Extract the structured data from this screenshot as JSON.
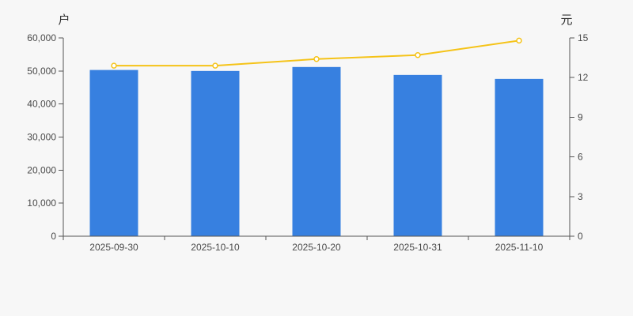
{
  "page": {
    "background": "#f7f7f7"
  },
  "style": {
    "axis_color": "#555555",
    "text_color": "#4a4a4a",
    "label_color": "#333333",
    "bar_color": "#3780e0",
    "line_color": "#f5c318",
    "marker_fill": "#ffffff"
  },
  "chart_data": {
    "type": "bar",
    "title": "",
    "grid": false,
    "legend": false,
    "categories": [
      "2025-09-30",
      "2025-10-10",
      "2025-10-20",
      "2025-10-31",
      "2025-11-10"
    ],
    "series": [
      {
        "name": "户",
        "type": "bar",
        "axis": "left",
        "color": "#3780e0",
        "values": [
          50300,
          50000,
          51200,
          48800,
          47600
        ]
      },
      {
        "name": "元",
        "type": "line",
        "axis": "right",
        "color": "#f5c318",
        "marker": "hollow-circle",
        "values": [
          12.9,
          12.9,
          13.4,
          13.7,
          14.8
        ]
      }
    ],
    "left_axis": {
      "label": "户",
      "min": 0,
      "max": 60000,
      "tick_interval": 10000,
      "tick_labels": [
        "0",
        "10,000",
        "20,000",
        "30,000",
        "40,000",
        "50,000",
        "60,000"
      ]
    },
    "right_axis": {
      "label": "元",
      "min": 0,
      "max": 15,
      "tick_interval": 3,
      "tick_labels": [
        "0",
        "3",
        "6",
        "9",
        "12",
        "15"
      ]
    }
  }
}
